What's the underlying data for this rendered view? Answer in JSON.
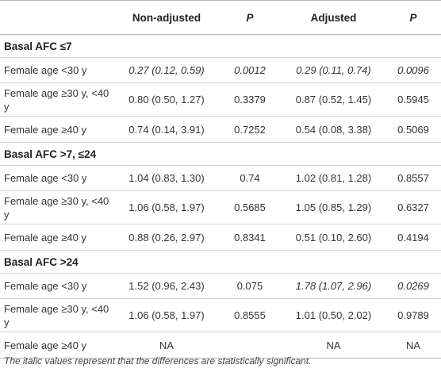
{
  "headers": [
    "",
    "Non-adjusted",
    "P",
    "Adjusted",
    "P"
  ],
  "sections": [
    {
      "title": "Basal AFC ≤7",
      "rows": [
        {
          "label": "Female age <30 y",
          "na": "0.27 (0.12, 0.59)",
          "p1": "0.0012",
          "adj": "0.29 (0.11, 0.74)",
          "p2": "0.0096",
          "na_italic": true,
          "p1_italic": true,
          "adj_italic": true,
          "p2_italic": true
        },
        {
          "label": "Female age ≥30 y, <40 y",
          "na": "0.80 (0.50, 1.27)",
          "p1": "0.3379",
          "adj": "0.87 (0.52, 1.45)",
          "p2": "0.5945"
        },
        {
          "label": "Female age ≥40 y",
          "na": "0.74 (0.14, 3.91)",
          "p1": "0.7252",
          "adj": "0.54 (0.08, 3.38)",
          "p2": "0.5069"
        }
      ]
    },
    {
      "title": "Basal AFC >7, ≤24",
      "rows": [
        {
          "label": "Female age <30 y",
          "na": "1.04 (0.83, 1.30)",
          "p1": "0.74",
          "adj": "1.02 (0.81, 1.28)",
          "p2": "0.8557"
        },
        {
          "label": "Female age ≥30 y, <40 y",
          "na": "1.06 (0.58, 1.97)",
          "p1": "0.5685",
          "adj": "1.05 (0.85, 1.29)",
          "p2": "0.6327"
        },
        {
          "label": "Female age ≥40 y",
          "na": "0.88 (0.26, 2.97)",
          "p1": "0.8341",
          "adj": "0.51 (0.10, 2.60)",
          "p2": "0.4194"
        }
      ]
    },
    {
      "title": "Basal AFC >24",
      "rows": [
        {
          "label": "Female age <30 y",
          "na": "1.52 (0.96, 2.43)",
          "p1": "0.075",
          "adj": "1.78 (1.07, 2.96)",
          "p2": "0.0269",
          "adj_italic": true,
          "p2_italic": true
        },
        {
          "label": "Female age ≥30 y, <40 y",
          "na": "1.06 (0.58, 1.97)",
          "p1": "0.8555",
          "adj": "1.01 (0.50, 2.02)",
          "p2": "0.9789"
        },
        {
          "label": "Female age ≥40 y",
          "na": "NA",
          "p1": "",
          "adj": "NA",
          "p2": "NA"
        }
      ]
    }
  ],
  "footnote": "The italic values represent that the differences are statistically significant."
}
